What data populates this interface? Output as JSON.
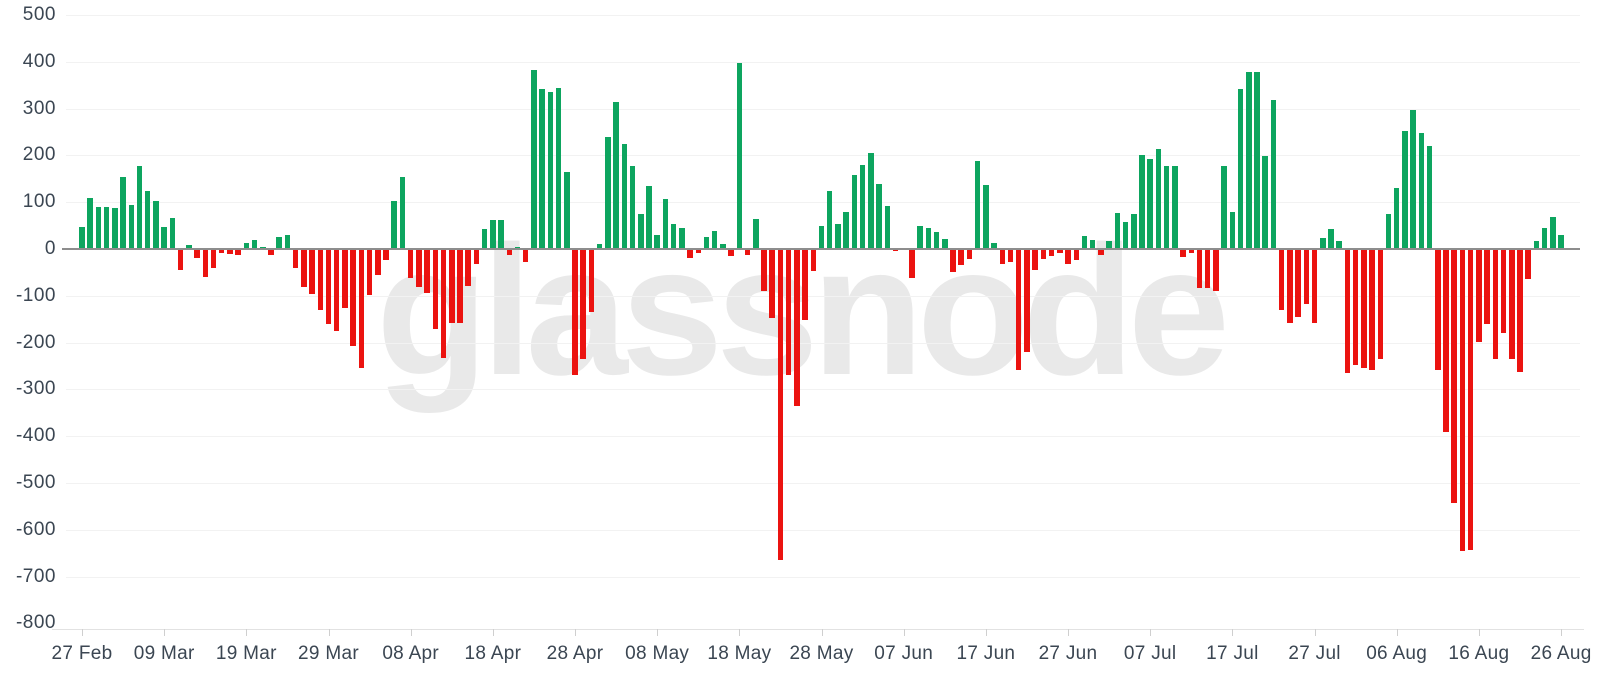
{
  "watermark": {
    "text": "glassnode"
  },
  "colors": {
    "positive_bar": "#0da55f",
    "negative_bar": "#eb1310",
    "gridline": "#f2f2f2",
    "zero_line": "#8d8d8d",
    "axis_line": "#e2e2e2",
    "tick_mark": "#cfcfcf",
    "axis_text": "#3b4652",
    "watermark_text": "#e9e9e9",
    "background": "#ffffff"
  },
  "chart_data": {
    "type": "bar",
    "title": "",
    "xlabel": "",
    "ylabel": "",
    "ylim": [
      -800,
      500
    ],
    "grid": true,
    "legend": "none",
    "y_ticks": [
      500,
      400,
      300,
      200,
      100,
      0,
      -100,
      -200,
      -300,
      -400,
      -500,
      -600,
      -700,
      -800
    ],
    "x_tick_labels": [
      "27 Feb",
      "09 Mar",
      "19 Mar",
      "29 Mar",
      "08 Apr",
      "18 Apr",
      "28 Apr",
      "08 May",
      "18 May",
      "28 May",
      "07 Jun",
      "17 Jun",
      "27 Jun",
      "07 Jul",
      "17 Jul",
      "27 Jul",
      "06 Aug",
      "16 Aug",
      "26 Aug"
    ],
    "x_tick_interval": 10,
    "values": [
      48,
      110,
      90,
      90,
      88,
      155,
      94,
      178,
      124,
      103,
      47,
      67,
      -44,
      8,
      -20,
      -60,
      -40,
      -8,
      -10,
      -12,
      13,
      20,
      4,
      -13,
      25,
      29,
      -40,
      -82,
      -96,
      -130,
      -160,
      -175,
      -126,
      -208,
      -254,
      -99,
      -55,
      -24,
      102,
      155,
      -62,
      -82,
      -94,
      -170,
      -232,
      -157,
      -157,
      -80,
      -33,
      42,
      63,
      63,
      -12,
      5,
      -28,
      383,
      343,
      336,
      345,
      165,
      -270,
      -235,
      -135,
      10,
      240,
      315,
      225,
      178,
      75,
      135,
      30,
      106,
      54,
      44,
      -19,
      -8,
      25,
      38,
      10,
      -15,
      398,
      -12,
      65,
      -90,
      -148,
      -664,
      -270,
      -335,
      -152,
      -46,
      50,
      124,
      54,
      80,
      158,
      179,
      206,
      140,
      92,
      -5,
      -2,
      -62,
      49,
      44,
      36,
      22,
      -50,
      -35,
      -21,
      188,
      137,
      12,
      -33,
      -27,
      -258,
      -221,
      -44,
      -21,
      -15,
      -8,
      -33,
      -24,
      27,
      19,
      -12,
      18,
      78,
      58,
      75,
      202,
      193,
      213,
      177,
      177,
      -18,
      -8,
      -83,
      -83,
      -90,
      178,
      79,
      343,
      378,
      378,
      199,
      319,
      -131,
      -159,
      -146,
      -118,
      -158,
      24,
      43,
      17,
      -265,
      -248,
      -255,
      -258,
      -235,
      75,
      131,
      253,
      297,
      248,
      220,
      -258,
      -390,
      -543,
      -645,
      -642,
      -199,
      -160,
      -234,
      -180,
      -234,
      -262,
      -63,
      17,
      46,
      68,
      30
    ]
  }
}
